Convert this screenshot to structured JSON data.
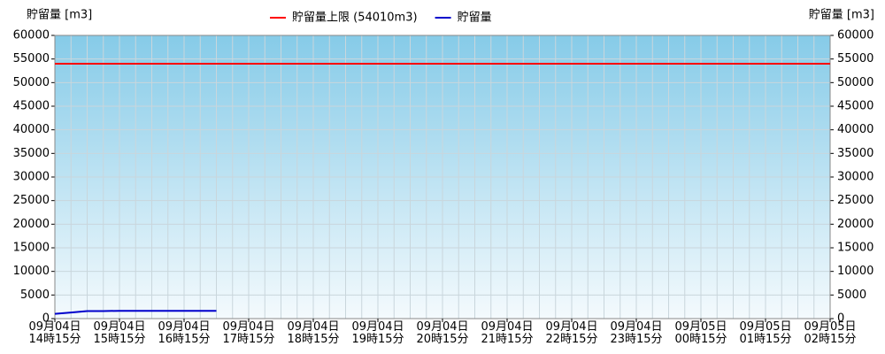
{
  "chart_data": {
    "type": "line",
    "y_label": "貯留量 [m3]",
    "y2_label": "貯留量 [m3]",
    "legend": "top",
    "grid": true,
    "categories": [
      "09月04日\n14時15分",
      null,
      null,
      null,
      "09月04日\n15時15分",
      null,
      null,
      null,
      "09月04日\n16時15分",
      null,
      null,
      null,
      "09月04日\n17時15分",
      null,
      null,
      null,
      "09月04日\n18時15分",
      null,
      null,
      null,
      "09月04日\n19時15分",
      null,
      null,
      null,
      "09月04日\n20時15分",
      null,
      null,
      null,
      "09月04日\n21時15分",
      null,
      null,
      null,
      "09月04日\n22時15分",
      null,
      null,
      null,
      "09月04日\n23時15分",
      null,
      null,
      null,
      "09月05日\n00時15分",
      null,
      null,
      null,
      "09月05日\n01時15分",
      null,
      null,
      null,
      "09月05日\n02時15分"
    ],
    "series": [
      {
        "name": "貯留量上限 (54010m3)",
        "color": "#ff0000",
        "values": [
          54010,
          54010,
          54010,
          54010,
          54010,
          54010,
          54010,
          54010,
          54010,
          54010,
          54010,
          54010,
          54010,
          54010,
          54010,
          54010,
          54010,
          54010,
          54010,
          54010,
          54010,
          54010,
          54010,
          54010,
          54010,
          54010,
          54010,
          54010,
          54010,
          54010,
          54010,
          54010,
          54010,
          54010,
          54010,
          54010,
          54010,
          54010,
          54010,
          54010,
          54010,
          54010,
          54010,
          54010,
          54010,
          54010,
          54010,
          54010,
          54010
        ]
      },
      {
        "name": "貯留量",
        "color": "#0000cc",
        "values": [
          1000,
          1300,
          1600,
          1600,
          1650,
          1650,
          1650,
          1650,
          1650,
          1650,
          1650,
          null,
          null,
          null,
          null,
          null,
          null,
          null,
          null,
          null,
          null,
          null,
          null,
          null,
          null,
          null,
          null,
          null,
          null,
          null,
          null,
          null,
          null,
          null,
          null,
          null,
          null,
          null,
          null,
          null,
          null,
          null,
          null,
          null,
          null,
          null,
          null,
          null,
          null
        ]
      }
    ],
    "ylim": [
      0,
      60000
    ],
    "yticks": [
      0,
      5000,
      10000,
      15000,
      20000,
      25000,
      30000,
      35000,
      40000,
      45000,
      50000,
      55000,
      60000
    ],
    "y2lim": [
      0,
      60000
    ],
    "y2ticks": [
      0,
      5000,
      10000,
      15000,
      20000,
      25000,
      30000,
      35000,
      40000,
      45000,
      50000,
      55000,
      60000
    ]
  }
}
